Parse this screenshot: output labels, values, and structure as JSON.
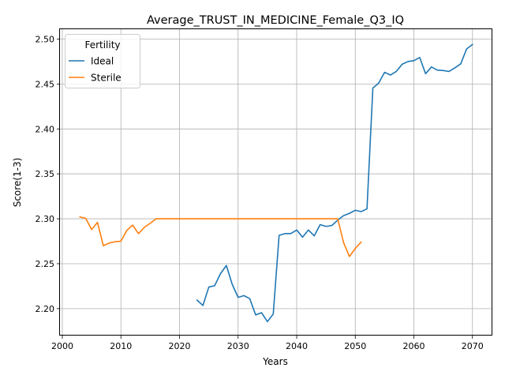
{
  "chart_data": {
    "type": "line",
    "title": "Average_TRUST_IN_MEDICINE_Female_Q3_IQ",
    "xlabel": "Years",
    "ylabel": "Score(1-3)",
    "xlim": [
      1999.6,
      2073.4
    ],
    "ylim": [
      2.17,
      2.511
    ],
    "xticks": [
      2000,
      2010,
      2020,
      2030,
      2040,
      2050,
      2060,
      2070
    ],
    "yticks": [
      2.2,
      2.25,
      2.3,
      2.35,
      2.4,
      2.45,
      2.5
    ],
    "xtick_labels": [
      "2000",
      "2010",
      "2020",
      "2030",
      "2040",
      "2050",
      "2060",
      "2070"
    ],
    "ytick_labels": [
      "2.20",
      "2.25",
      "2.30",
      "2.35",
      "2.40",
      "2.45",
      "2.50"
    ],
    "grid": true,
    "legend": {
      "title": "Fertility",
      "placement": "upper-left"
    },
    "series": [
      {
        "name": "Ideal",
        "color": "#1f77b4",
        "x": [
          2023,
          2024,
          2025,
          2026,
          2027,
          2028,
          2029,
          2030,
          2031,
          2032,
          2033,
          2034,
          2035,
          2036,
          2037,
          2038,
          2039,
          2040,
          2041,
          2042,
          2043,
          2044,
          2045,
          2046,
          2047,
          2048,
          2049,
          2050,
          2051,
          2052,
          2053,
          2054,
          2055,
          2056,
          2057,
          2058,
          2059,
          2060,
          2061,
          2062,
          2063,
          2064,
          2065,
          2066,
          2067,
          2068,
          2069,
          2070
        ],
        "y": [
          2.2095,
          2.2035,
          2.224,
          2.2255,
          2.239,
          2.248,
          2.227,
          2.2125,
          2.2145,
          2.211,
          2.193,
          2.1955,
          2.1855,
          2.194,
          2.2815,
          2.2835,
          2.2835,
          2.2875,
          2.2795,
          2.2875,
          2.281,
          2.2935,
          2.2915,
          2.2925,
          2.2985,
          2.3035,
          2.306,
          2.3095,
          2.308,
          2.311,
          2.4455,
          2.451,
          2.463,
          2.46,
          2.464,
          2.472,
          2.475,
          2.476,
          2.4795,
          2.4615,
          2.469,
          2.4655,
          2.465,
          2.464,
          2.468,
          2.4725,
          2.489,
          2.494
        ]
      },
      {
        "name": "Sterile",
        "color": "#ff7f0e",
        "x": [
          2003,
          2004,
          2005,
          2006,
          2007,
          2008,
          2009,
          2010,
          2011,
          2012,
          2013,
          2014,
          2015,
          2016,
          2017,
          2018,
          2019,
          2020,
          2021,
          2022,
          2023,
          2024,
          2025,
          2026,
          2027,
          2028,
          2029,
          2030,
          2031,
          2032,
          2033,
          2034,
          2035,
          2036,
          2037,
          2038,
          2039,
          2040,
          2041,
          2042,
          2043,
          2044,
          2045,
          2046,
          2047,
          2048,
          2049,
          2050,
          2051
        ],
        "y": [
          2.302,
          2.3005,
          2.288,
          2.296,
          2.27,
          2.273,
          2.2745,
          2.275,
          2.287,
          2.293,
          2.2835,
          2.2905,
          2.295,
          2.3,
          2.3,
          2.3,
          2.3,
          2.3,
          2.3,
          2.3,
          2.3,
          2.3,
          2.3,
          2.3,
          2.3,
          2.3,
          2.3,
          2.3,
          2.3,
          2.3,
          2.3,
          2.3,
          2.3,
          2.3,
          2.3,
          2.3,
          2.3,
          2.3,
          2.3,
          2.3,
          2.3,
          2.3,
          2.3,
          2.3,
          2.3,
          2.2735,
          2.258,
          2.267,
          2.274
        ]
      }
    ]
  }
}
